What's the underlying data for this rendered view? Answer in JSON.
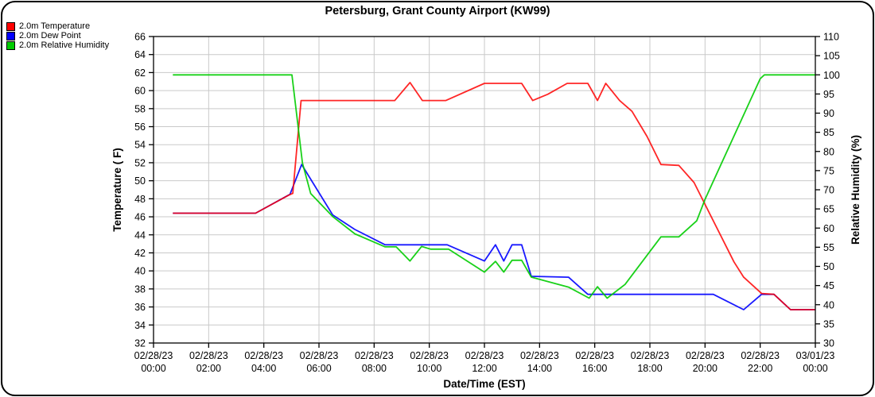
{
  "window": {
    "title": "Petersburg, Grant County Airport (KW99)"
  },
  "chart_data": {
    "type": "line",
    "title": "Petersburg, Grant County Airport (KW99)",
    "xlabel": "Date/Time (EST)",
    "ylabel_left": "Temperature ( F)",
    "ylabel_right": "Relative Humidity (%)",
    "grid": true,
    "grid_color": "#c9c9c9",
    "legend_position": "top-left",
    "x_range": [
      0,
      24
    ],
    "y_left": {
      "min": 32,
      "max": 66,
      "tick_step": 2
    },
    "y_right": {
      "min": 30,
      "max": 110,
      "tick_step": 5
    },
    "x_ticks": [
      {
        "hour": 0,
        "date": "02/28/23",
        "time": "00:00"
      },
      {
        "hour": 2,
        "date": "02/28/23",
        "time": "02:00"
      },
      {
        "hour": 4,
        "date": "02/28/23",
        "time": "04:00"
      },
      {
        "hour": 6,
        "date": "02/28/23",
        "time": "06:00"
      },
      {
        "hour": 8,
        "date": "02/28/23",
        "time": "08:00"
      },
      {
        "hour": 10,
        "date": "02/28/23",
        "time": "10:00"
      },
      {
        "hour": 12,
        "date": "02/28/23",
        "time": "12:00"
      },
      {
        "hour": 14,
        "date": "02/28/23",
        "time": "14:00"
      },
      {
        "hour": 16,
        "date": "02/28/23",
        "time": "16:00"
      },
      {
        "hour": 18,
        "date": "02/28/23",
        "time": "18:00"
      },
      {
        "hour": 20,
        "date": "02/28/23",
        "time": "20:00"
      },
      {
        "hour": 22,
        "date": "02/28/23",
        "time": "22:00"
      },
      {
        "hour": 24,
        "date": "03/01/23",
        "time": "00:00"
      }
    ],
    "series": [
      {
        "name": "2.0m Dew Point",
        "legend_order": 1,
        "color": "#0000ff",
        "axis": "left",
        "points": [
          [
            0.7,
            46.4
          ],
          [
            3.7,
            46.4
          ],
          [
            4.95,
            48.5
          ],
          [
            5.37,
            51.8
          ],
          [
            6.5,
            46.2
          ],
          [
            7.3,
            44.6
          ],
          [
            8.4,
            42.9
          ],
          [
            10.65,
            42.9
          ],
          [
            12.0,
            41.1
          ],
          [
            12.4,
            42.9
          ],
          [
            12.7,
            41.1
          ],
          [
            13.0,
            42.9
          ],
          [
            13.35,
            42.9
          ],
          [
            13.7,
            39.4
          ],
          [
            15.05,
            39.3
          ],
          [
            15.75,
            37.4
          ],
          [
            20.3,
            37.4
          ],
          [
            21.4,
            35.7
          ],
          [
            22.05,
            37.4
          ],
          [
            22.5,
            37.4
          ],
          [
            23.1,
            35.7
          ],
          [
            24.0,
            35.7
          ]
        ]
      },
      {
        "name": "2.0m Temperature",
        "legend_order": 0,
        "color": "#ff0000",
        "axis": "left",
        "points": [
          [
            0.7,
            46.4
          ],
          [
            3.7,
            46.4
          ],
          [
            4.9,
            48.4
          ],
          [
            5.05,
            48.6
          ],
          [
            5.35,
            58.9
          ],
          [
            8.75,
            58.9
          ],
          [
            9.3,
            60.9
          ],
          [
            9.75,
            58.9
          ],
          [
            10.6,
            58.9
          ],
          [
            12.0,
            60.8
          ],
          [
            13.35,
            60.8
          ],
          [
            13.75,
            58.9
          ],
          [
            14.3,
            59.6
          ],
          [
            15.0,
            60.8
          ],
          [
            15.75,
            60.8
          ],
          [
            16.1,
            58.9
          ],
          [
            16.4,
            60.8
          ],
          [
            16.9,
            58.9
          ],
          [
            17.35,
            57.7
          ],
          [
            17.9,
            54.9
          ],
          [
            18.4,
            51.8
          ],
          [
            19.05,
            51.7
          ],
          [
            19.6,
            49.8
          ],
          [
            21.05,
            41.0
          ],
          [
            21.4,
            39.3
          ],
          [
            22.05,
            37.5
          ],
          [
            22.5,
            37.4
          ],
          [
            23.1,
            35.7
          ],
          [
            24.0,
            35.7
          ]
        ]
      },
      {
        "name": "2.0m Relative Humidity",
        "legend_order": 2,
        "color": "#00cc00",
        "axis": "right",
        "points": [
          [
            0.7,
            100
          ],
          [
            5.02,
            100
          ],
          [
            5.4,
            77
          ],
          [
            5.7,
            69
          ],
          [
            6.5,
            63
          ],
          [
            7.3,
            58.5
          ],
          [
            8.4,
            55.1
          ],
          [
            8.8,
            55.1
          ],
          [
            9.3,
            51.4
          ],
          [
            9.72,
            55.2
          ],
          [
            10.05,
            54.5
          ],
          [
            10.7,
            54.5
          ],
          [
            12.0,
            48.5
          ],
          [
            12.4,
            51.3
          ],
          [
            12.7,
            48.5
          ],
          [
            13.0,
            51.6
          ],
          [
            13.35,
            51.6
          ],
          [
            13.7,
            47.2
          ],
          [
            15.05,
            44.6
          ],
          [
            15.8,
            41.7
          ],
          [
            16.1,
            44.7
          ],
          [
            16.45,
            41.7
          ],
          [
            17.1,
            45.3
          ],
          [
            18.4,
            57.7
          ],
          [
            19.05,
            57.7
          ],
          [
            19.7,
            61.9
          ],
          [
            20.0,
            67.5
          ],
          [
            22.0,
            99.0
          ],
          [
            22.15,
            100
          ],
          [
            24.0,
            100
          ]
        ]
      }
    ]
  }
}
